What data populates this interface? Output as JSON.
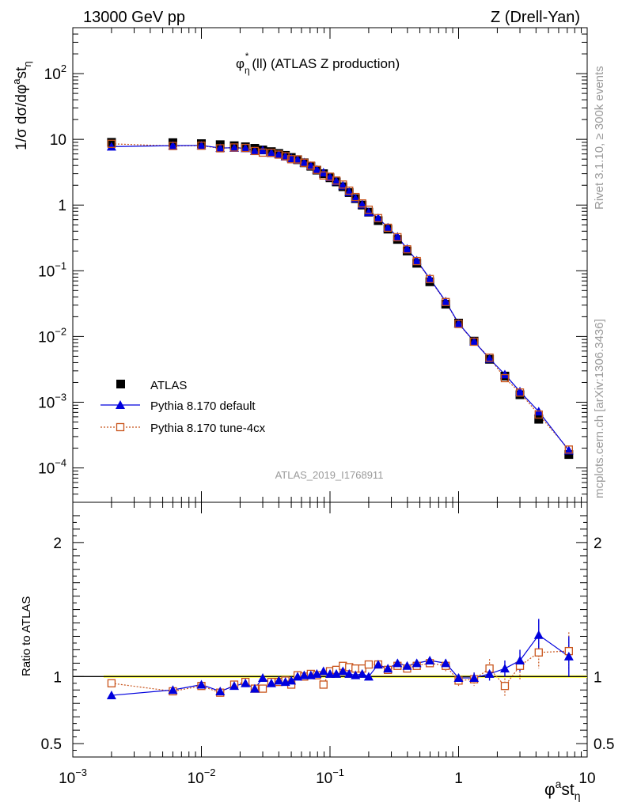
{
  "header": {
    "energy_label": "13000 GeV pp",
    "process_label": "Z (Drell-Yan)"
  },
  "main_title": {
    "base": "φ",
    "sub": "η",
    "sup": "*",
    "rest": "(ll) (ATLAS Z production)"
  },
  "side_labels": {
    "rivet": "Rivet 3.1.10, ≥ 300k events",
    "mcplots": "mcplots.cern.ch [arXiv:1306.3436]"
  },
  "watermark": "ATLAS_2019_I1768911",
  "ylabel_main": "1/σ dσ/dφ",
  "ylabel_main_sup": "a",
  "ylabel_main_rest": "st",
  "ylabel_main_sub": "η",
  "ylabel_ratio": "Ratio to ATLAS",
  "xlabel": {
    "base": "φ",
    "sup": "a",
    "mid": "st",
    "sub": "η"
  },
  "colors": {
    "atlas": "#000000",
    "default": "#0000dd",
    "tune": "#c8531a",
    "band": "#ffff33",
    "band_edge": "#7ccc33"
  },
  "chart_data": {
    "type": "scatter",
    "x_scale": "log",
    "main_y_scale": "log",
    "xlim": [
      0.001,
      10
    ],
    "main_ylim": [
      3e-05,
      500
    ],
    "ratio_ylim": [
      0.4,
      2.3
    ],
    "x_ticks": [
      {
        "v": 0.001,
        "base": "10",
        "exp": "−3"
      },
      {
        "v": 0.01,
        "base": "10",
        "exp": "−2"
      },
      {
        "v": 0.1,
        "base": "10",
        "exp": "−1"
      },
      {
        "v": 1,
        "base": "1",
        "exp": ""
      },
      {
        "v": 10,
        "base": "10",
        "exp": ""
      }
    ],
    "main_y_ticks": [
      {
        "v": 0.0001,
        "base": "10",
        "exp": "−4"
      },
      {
        "v": 0.001,
        "base": "10",
        "exp": "−3"
      },
      {
        "v": 0.01,
        "base": "10",
        "exp": "−2"
      },
      {
        "v": 0.1,
        "base": "10",
        "exp": "−1"
      },
      {
        "v": 1,
        "base": "1",
        "exp": ""
      },
      {
        "v": 10,
        "base": "10",
        "exp": ""
      },
      {
        "v": 100,
        "base": "10",
        "exp": "2"
      }
    ],
    "ratio_y_ticks": [
      {
        "v": 0.5,
        "label": "0.5"
      },
      {
        "v": 1,
        "label": "1"
      },
      {
        "v": 2,
        "label": "2"
      }
    ],
    "legend_position": "bottom-left",
    "series": [
      {
        "name": "ATLAS",
        "marker": "filled-square",
        "x": [
          0.002,
          0.006,
          0.01,
          0.014,
          0.018,
          0.022,
          0.026,
          0.03,
          0.035,
          0.04,
          0.045,
          0.05,
          0.056,
          0.063,
          0.071,
          0.079,
          0.089,
          0.1,
          0.112,
          0.126,
          0.141,
          0.158,
          0.178,
          0.2,
          0.237,
          0.282,
          0.335,
          0.398,
          0.473,
          0.597,
          0.794,
          1.0,
          1.32,
          1.74,
          2.29,
          3.0,
          4.2,
          7.2
        ],
        "y": [
          9.0,
          8.9,
          8.6,
          8.3,
          8.0,
          7.7,
          7.3,
          6.9,
          6.5,
          6.1,
          5.7,
          5.3,
          4.9,
          4.4,
          3.9,
          3.4,
          3.0,
          2.6,
          2.25,
          1.9,
          1.55,
          1.25,
          1.0,
          0.78,
          0.58,
          0.43,
          0.3,
          0.2,
          0.13,
          0.068,
          0.031,
          0.016,
          0.0085,
          0.0045,
          0.0025,
          0.0013,
          0.00055,
          0.00016
        ]
      },
      {
        "name": "Pythia 8.170 default",
        "marker": "filled-triangle",
        "x": [
          0.002,
          0.006,
          0.01,
          0.014,
          0.018,
          0.022,
          0.026,
          0.03,
          0.035,
          0.04,
          0.045,
          0.05,
          0.056,
          0.063,
          0.071,
          0.079,
          0.089,
          0.1,
          0.112,
          0.126,
          0.141,
          0.158,
          0.178,
          0.2,
          0.237,
          0.282,
          0.335,
          0.398,
          0.473,
          0.597,
          0.794,
          1.0,
          1.32,
          1.74,
          2.29,
          3.0,
          4.2,
          7.2
        ],
        "ratio": [
          0.86,
          0.9,
          0.94,
          0.89,
          0.93,
          0.95,
          0.91,
          0.99,
          0.95,
          0.97,
          0.96,
          0.97,
          1.0,
          1.01,
          1.01,
          1.02,
          1.04,
          1.02,
          1.02,
          1.04,
          1.02,
          1.01,
          1.02,
          1.0,
          1.09,
          1.06,
          1.1,
          1.08,
          1.1,
          1.12,
          1.1,
          0.99,
          0.99,
          1.02,
          1.06,
          1.12,
          1.31,
          1.15
        ],
        "ratio_err": [
          0.02,
          0.02,
          0.02,
          0.02,
          0.02,
          0.02,
          0.02,
          0.02,
          0.02,
          0.02,
          0.02,
          0.02,
          0.02,
          0.02,
          0.02,
          0.02,
          0.02,
          0.02,
          0.02,
          0.02,
          0.02,
          0.02,
          0.02,
          0.02,
          0.02,
          0.02,
          0.02,
          0.02,
          0.02,
          0.02,
          0.03,
          0.03,
          0.04,
          0.05,
          0.06,
          0.08,
          0.12,
          0.15
        ]
      },
      {
        "name": "Pythia 8.170 tune-4cx",
        "marker": "open-square",
        "x": [
          0.002,
          0.006,
          0.01,
          0.014,
          0.018,
          0.022,
          0.026,
          0.03,
          0.035,
          0.04,
          0.045,
          0.05,
          0.056,
          0.063,
          0.071,
          0.079,
          0.089,
          0.1,
          0.112,
          0.126,
          0.141,
          0.158,
          0.178,
          0.2,
          0.237,
          0.282,
          0.335,
          0.398,
          0.473,
          0.597,
          0.794,
          1.0,
          1.32,
          1.74,
          2.29,
          3.0,
          4.2,
          7.2
        ],
        "ratio": [
          0.95,
          0.89,
          0.93,
          0.88,
          0.94,
          0.96,
          0.91,
          0.91,
          0.96,
          0.96,
          0.97,
          0.94,
          1.01,
          1.0,
          1.02,
          1.01,
          0.94,
          1.04,
          1.05,
          1.08,
          1.07,
          1.06,
          1.06,
          1.09,
          1.09,
          1.05,
          1.08,
          1.06,
          1.08,
          1.1,
          1.08,
          0.97,
          0.98,
          1.06,
          0.93,
          1.08,
          1.18,
          1.19
        ],
        "ratio_err": [
          0.02,
          0.02,
          0.02,
          0.02,
          0.02,
          0.02,
          0.02,
          0.02,
          0.02,
          0.02,
          0.02,
          0.02,
          0.02,
          0.02,
          0.02,
          0.02,
          0.02,
          0.02,
          0.02,
          0.02,
          0.02,
          0.02,
          0.02,
          0.02,
          0.02,
          0.02,
          0.02,
          0.02,
          0.02,
          0.02,
          0.04,
          0.04,
          0.05,
          0.07,
          0.08,
          0.1,
          0.12,
          0.14
        ]
      }
    ],
    "atlas_band": [
      0.99,
      1.01
    ]
  }
}
